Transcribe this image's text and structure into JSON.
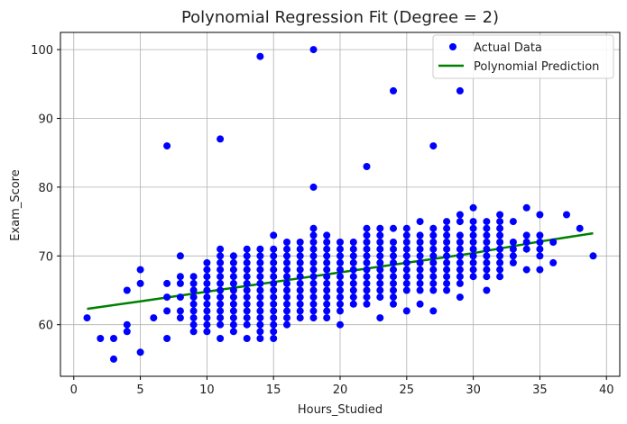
{
  "chart_data": {
    "type": "scatter",
    "title": "Polynomial Regression Fit (Degree = 2)",
    "xlabel": "Hours_Studied",
    "ylabel": "Exam_Score",
    "xlim": [
      -1,
      41
    ],
    "ylim": [
      52.5,
      102.5
    ],
    "xticks": [
      0,
      5,
      10,
      15,
      20,
      25,
      30,
      35,
      40
    ],
    "yticks": [
      60,
      70,
      80,
      90,
      100
    ],
    "grid": true,
    "legend_position": "top-right",
    "series": [
      {
        "name": "Actual Data",
        "kind": "scatter",
        "color": "#0000ff",
        "points": [
          [
            1,
            61
          ],
          [
            2,
            58
          ],
          [
            3,
            58
          ],
          [
            3,
            55
          ],
          [
            4,
            60
          ],
          [
            4,
            59
          ],
          [
            4,
            65
          ],
          [
            5,
            68
          ],
          [
            5,
            66
          ],
          [
            5,
            56
          ],
          [
            6,
            61
          ],
          [
            7,
            86
          ],
          [
            7,
            66
          ],
          [
            7,
            64
          ],
          [
            7,
            62
          ],
          [
            7,
            58
          ],
          [
            11,
            87
          ],
          [
            11,
            58
          ],
          [
            14,
            99
          ],
          [
            14,
            59
          ],
          [
            14,
            58
          ],
          [
            18,
            100
          ],
          [
            18,
            80
          ],
          [
            20,
            60
          ],
          [
            22,
            83
          ],
          [
            23,
            61
          ],
          [
            24,
            94
          ],
          [
            25,
            62
          ],
          [
            26,
            63
          ],
          [
            27,
            86
          ],
          [
            27,
            62
          ],
          [
            29,
            94
          ],
          [
            29,
            64
          ],
          [
            31,
            65
          ],
          [
            33,
            75
          ],
          [
            34,
            77
          ],
          [
            34,
            68
          ],
          [
            35,
            76
          ],
          [
            35,
            68
          ],
          [
            36,
            72
          ],
          [
            36,
            69
          ],
          [
            37,
            76
          ],
          [
            38,
            74
          ],
          [
            39,
            70
          ],
          [
            8,
            70
          ],
          [
            8,
            67
          ],
          [
            8,
            66
          ],
          [
            8,
            64
          ],
          [
            8,
            62
          ],
          [
            8,
            61
          ],
          [
            9,
            67
          ],
          [
            9,
            66
          ],
          [
            9,
            65
          ],
          [
            9,
            64
          ],
          [
            9,
            63
          ],
          [
            9,
            62
          ],
          [
            9,
            61
          ],
          [
            9,
            60
          ],
          [
            9,
            59
          ],
          [
            10,
            69
          ],
          [
            10,
            68
          ],
          [
            10,
            67
          ],
          [
            10,
            66
          ],
          [
            10,
            65
          ],
          [
            10,
            64
          ],
          [
            10,
            63
          ],
          [
            10,
            62
          ],
          [
            10,
            61
          ],
          [
            10,
            60
          ],
          [
            10,
            59
          ],
          [
            11,
            71
          ],
          [
            11,
            70
          ],
          [
            11,
            69
          ],
          [
            11,
            68
          ],
          [
            11,
            67
          ],
          [
            11,
            66
          ],
          [
            11,
            65
          ],
          [
            11,
            64
          ],
          [
            11,
            63
          ],
          [
            11,
            62
          ],
          [
            11,
            61
          ],
          [
            11,
            60
          ],
          [
            12,
            70
          ],
          [
            12,
            69
          ],
          [
            12,
            68
          ],
          [
            12,
            67
          ],
          [
            12,
            66
          ],
          [
            12,
            65
          ],
          [
            12,
            64
          ],
          [
            12,
            63
          ],
          [
            12,
            62
          ],
          [
            12,
            61
          ],
          [
            12,
            60
          ],
          [
            12,
            59
          ],
          [
            13,
            71
          ],
          [
            13,
            70
          ],
          [
            13,
            69
          ],
          [
            13,
            68
          ],
          [
            13,
            67
          ],
          [
            13,
            66
          ],
          [
            13,
            65
          ],
          [
            13,
            64
          ],
          [
            13,
            63
          ],
          [
            13,
            62
          ],
          [
            13,
            61
          ],
          [
            13,
            60
          ],
          [
            13,
            58
          ],
          [
            14,
            71
          ],
          [
            14,
            70
          ],
          [
            14,
            69
          ],
          [
            14,
            68
          ],
          [
            14,
            67
          ],
          [
            14,
            66
          ],
          [
            14,
            65
          ],
          [
            14,
            64
          ],
          [
            14,
            63
          ],
          [
            14,
            62
          ],
          [
            14,
            61
          ],
          [
            14,
            60
          ],
          [
            15,
            73
          ],
          [
            15,
            71
          ],
          [
            15,
            70
          ],
          [
            15,
            69
          ],
          [
            15,
            68
          ],
          [
            15,
            67
          ],
          [
            15,
            66
          ],
          [
            15,
            65
          ],
          [
            15,
            64
          ],
          [
            15,
            63
          ],
          [
            15,
            62
          ],
          [
            15,
            61
          ],
          [
            15,
            60
          ],
          [
            15,
            59
          ],
          [
            15,
            58
          ],
          [
            16,
            72
          ],
          [
            16,
            71
          ],
          [
            16,
            70
          ],
          [
            16,
            69
          ],
          [
            16,
            68
          ],
          [
            16,
            67
          ],
          [
            16,
            66
          ],
          [
            16,
            65
          ],
          [
            16,
            64
          ],
          [
            16,
            63
          ],
          [
            16,
            62
          ],
          [
            16,
            61
          ],
          [
            16,
            60
          ],
          [
            17,
            72
          ],
          [
            17,
            71
          ],
          [
            17,
            70
          ],
          [
            17,
            69
          ],
          [
            17,
            68
          ],
          [
            17,
            67
          ],
          [
            17,
            66
          ],
          [
            17,
            65
          ],
          [
            17,
            64
          ],
          [
            17,
            63
          ],
          [
            17,
            62
          ],
          [
            17,
            61
          ],
          [
            18,
            74
          ],
          [
            18,
            73
          ],
          [
            18,
            72
          ],
          [
            18,
            71
          ],
          [
            18,
            70
          ],
          [
            18,
            69
          ],
          [
            18,
            68
          ],
          [
            18,
            67
          ],
          [
            18,
            66
          ],
          [
            18,
            65
          ],
          [
            18,
            64
          ],
          [
            18,
            63
          ],
          [
            18,
            62
          ],
          [
            18,
            61
          ],
          [
            19,
            73
          ],
          [
            19,
            72
          ],
          [
            19,
            71
          ],
          [
            19,
            70
          ],
          [
            19,
            69
          ],
          [
            19,
            68
          ],
          [
            19,
            67
          ],
          [
            19,
            66
          ],
          [
            19,
            65
          ],
          [
            19,
            64
          ],
          [
            19,
            63
          ],
          [
            19,
            62
          ],
          [
            19,
            61
          ],
          [
            20,
            72
          ],
          [
            20,
            71
          ],
          [
            20,
            70
          ],
          [
            20,
            69
          ],
          [
            20,
            68
          ],
          [
            20,
            67
          ],
          [
            20,
            66
          ],
          [
            20,
            65
          ],
          [
            20,
            64
          ],
          [
            20,
            63
          ],
          [
            20,
            62
          ],
          [
            21,
            72
          ],
          [
            21,
            71
          ],
          [
            21,
            70
          ],
          [
            21,
            69
          ],
          [
            21,
            68
          ],
          [
            21,
            67
          ],
          [
            21,
            66
          ],
          [
            21,
            65
          ],
          [
            21,
            64
          ],
          [
            21,
            63
          ],
          [
            22,
            74
          ],
          [
            22,
            73
          ],
          [
            22,
            72
          ],
          [
            22,
            71
          ],
          [
            22,
            70
          ],
          [
            22,
            69
          ],
          [
            22,
            68
          ],
          [
            22,
            67
          ],
          [
            22,
            66
          ],
          [
            22,
            65
          ],
          [
            22,
            64
          ],
          [
            22,
            63
          ],
          [
            23,
            74
          ],
          [
            23,
            73
          ],
          [
            23,
            72
          ],
          [
            23,
            71
          ],
          [
            23,
            70
          ],
          [
            23,
            69
          ],
          [
            23,
            68
          ],
          [
            23,
            67
          ],
          [
            23,
            66
          ],
          [
            23,
            65
          ],
          [
            23,
            64
          ],
          [
            24,
            74
          ],
          [
            24,
            72
          ],
          [
            24,
            71
          ],
          [
            24,
            70
          ],
          [
            24,
            69
          ],
          [
            24,
            68
          ],
          [
            24,
            67
          ],
          [
            24,
            66
          ],
          [
            24,
            65
          ],
          [
            24,
            64
          ],
          [
            24,
            63
          ],
          [
            25,
            74
          ],
          [
            25,
            73
          ],
          [
            25,
            72
          ],
          [
            25,
            71
          ],
          [
            25,
            70
          ],
          [
            25,
            69
          ],
          [
            25,
            68
          ],
          [
            25,
            67
          ],
          [
            25,
            66
          ],
          [
            25,
            65
          ],
          [
            26,
            75
          ],
          [
            26,
            73
          ],
          [
            26,
            72
          ],
          [
            26,
            71
          ],
          [
            26,
            70
          ],
          [
            26,
            69
          ],
          [
            26,
            68
          ],
          [
            26,
            67
          ],
          [
            26,
            66
          ],
          [
            26,
            65
          ],
          [
            27,
            74
          ],
          [
            27,
            73
          ],
          [
            27,
            72
          ],
          [
            27,
            71
          ],
          [
            27,
            70
          ],
          [
            27,
            69
          ],
          [
            27,
            68
          ],
          [
            27,
            67
          ],
          [
            27,
            66
          ],
          [
            27,
            65
          ],
          [
            28,
            75
          ],
          [
            28,
            74
          ],
          [
            28,
            73
          ],
          [
            28,
            72
          ],
          [
            28,
            71
          ],
          [
            28,
            70
          ],
          [
            28,
            69
          ],
          [
            28,
            68
          ],
          [
            28,
            67
          ],
          [
            28,
            66
          ],
          [
            28,
            65
          ],
          [
            29,
            76
          ],
          [
            29,
            75
          ],
          [
            29,
            73
          ],
          [
            29,
            72
          ],
          [
            29,
            71
          ],
          [
            29,
            70
          ],
          [
            29,
            69
          ],
          [
            29,
            68
          ],
          [
            29,
            67
          ],
          [
            29,
            66
          ],
          [
            30,
            77
          ],
          [
            30,
            75
          ],
          [
            30,
            74
          ],
          [
            30,
            73
          ],
          [
            30,
            72
          ],
          [
            30,
            71
          ],
          [
            30,
            70
          ],
          [
            30,
            69
          ],
          [
            30,
            68
          ],
          [
            30,
            67
          ],
          [
            31,
            75
          ],
          [
            31,
            74
          ],
          [
            31,
            73
          ],
          [
            31,
            72
          ],
          [
            31,
            71
          ],
          [
            31,
            70
          ],
          [
            31,
            69
          ],
          [
            31,
            68
          ],
          [
            31,
            67
          ],
          [
            32,
            76
          ],
          [
            32,
            75
          ],
          [
            32,
            74
          ],
          [
            32,
            73
          ],
          [
            32,
            72
          ],
          [
            32,
            71
          ],
          [
            32,
            70
          ],
          [
            32,
            69
          ],
          [
            32,
            68
          ],
          [
            32,
            67
          ],
          [
            33,
            72
          ],
          [
            33,
            71
          ],
          [
            33,
            70
          ],
          [
            33,
            69
          ],
          [
            34,
            73
          ],
          [
            34,
            72
          ],
          [
            34,
            71
          ],
          [
            35,
            73
          ],
          [
            35,
            72
          ],
          [
            35,
            71
          ],
          [
            35,
            70
          ]
        ]
      },
      {
        "name": "Polynomial Prediction",
        "kind": "line",
        "color": "#008000",
        "x": [
          1,
          5,
          10,
          15,
          20,
          25,
          30,
          35,
          39
        ],
        "y": [
          62.3,
          63.4,
          64.8,
          66.2,
          67.6,
          69.0,
          70.4,
          72.1,
          73.3
        ]
      }
    ]
  }
}
